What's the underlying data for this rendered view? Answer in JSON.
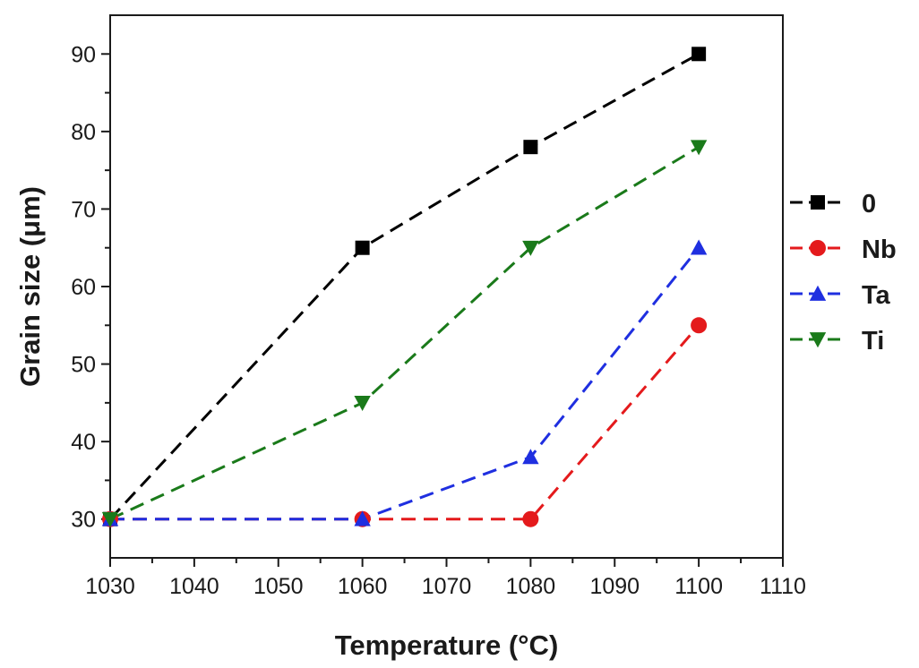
{
  "chart_data": {
    "type": "line",
    "xlabel": "Temperature (°C)",
    "ylabel": "Grain size (μm)",
    "xlim": [
      1030,
      1110
    ],
    "ylim": [
      25,
      95
    ],
    "x_ticks": [
      1030,
      1040,
      1050,
      1060,
      1070,
      1080,
      1090,
      1100,
      1110
    ],
    "y_ticks": [
      30,
      40,
      50,
      60,
      70,
      80,
      90
    ],
    "grid": false,
    "legend_position": "right",
    "line_style": "dashed",
    "series": [
      {
        "name": "0",
        "color": "#000000",
        "marker": "square",
        "x": [
          1030,
          1060,
          1080,
          1100
        ],
        "y": [
          30,
          65,
          78,
          90
        ]
      },
      {
        "name": "Nb",
        "color": "#e41a1c",
        "marker": "circle",
        "x": [
          1030,
          1060,
          1080,
          1100
        ],
        "y": [
          30,
          30,
          30,
          55
        ]
      },
      {
        "name": "Ta",
        "color": "#1f2fe0",
        "marker": "triangle-up",
        "x": [
          1030,
          1060,
          1080,
          1100
        ],
        "y": [
          30,
          30,
          38,
          65
        ]
      },
      {
        "name": "Ti",
        "color": "#1a7a1a",
        "marker": "triangle-down",
        "x": [
          1030,
          1060,
          1080,
          1100
        ],
        "y": [
          30,
          45,
          65,
          78
        ]
      }
    ]
  }
}
